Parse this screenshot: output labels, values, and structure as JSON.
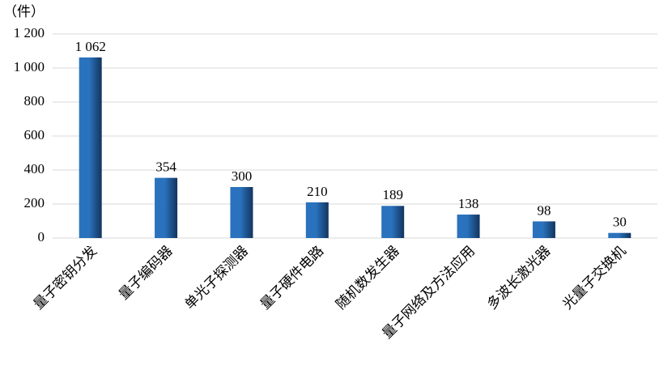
{
  "chart_data": {
    "type": "bar",
    "y_label": "（件）",
    "categories": [
      "量子密钥分发",
      "量子编码器",
      "单光子探测器",
      "量子硬件电路",
      "随机数发生器",
      "量子网络及方法应用",
      "多波长激光器",
      "光量子交换机"
    ],
    "values": [
      1062,
      354,
      300,
      210,
      189,
      138,
      98,
      30
    ],
    "value_labels": [
      "1 062",
      "354",
      "300",
      "210",
      "189",
      "138",
      "98",
      "30"
    ],
    "color": "#2a72bd",
    "ylim": [
      0,
      1200
    ],
    "yticks": [
      0,
      200,
      400,
      600,
      800,
      {
        "value": 1000,
        "label": "1 000"
      },
      {
        "value": 1200,
        "label": "1 200"
      }
    ],
    "grid": true
  }
}
